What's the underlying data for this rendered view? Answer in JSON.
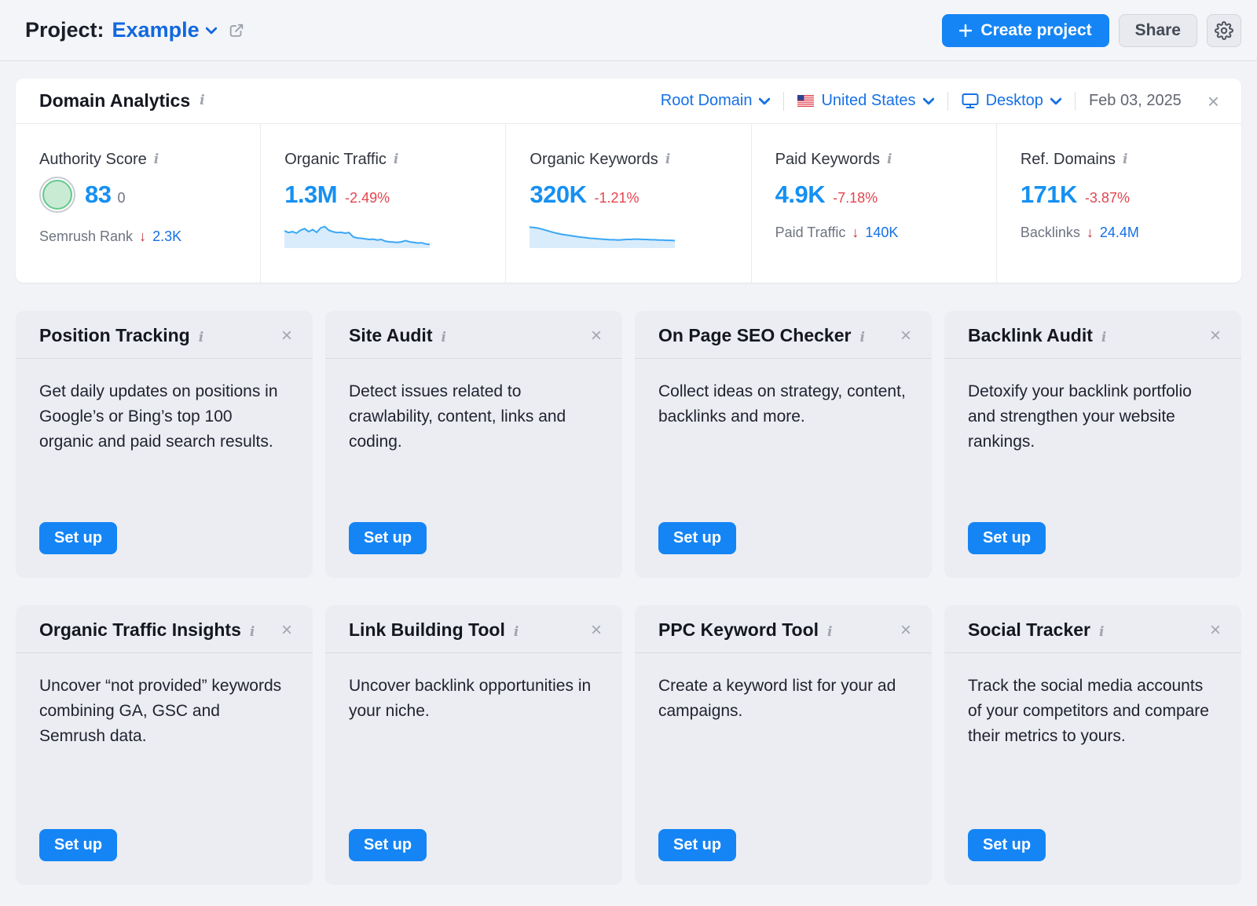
{
  "header": {
    "project_label": "Project:",
    "project_name": "Example",
    "create_project_label": "Create project",
    "share_label": "Share"
  },
  "panel": {
    "title": "Domain Analytics",
    "filters": {
      "scope": "Root Domain",
      "country": "United States",
      "device": "Desktop",
      "date": "Feb 03, 2025"
    },
    "metrics": [
      {
        "label": "Authority Score",
        "value": "83",
        "value_secondary": "0",
        "sub_label": "Semrush Rank",
        "sub_value": "2.3K"
      },
      {
        "label": "Organic Traffic",
        "value": "1.3M",
        "change": "-2.49%"
      },
      {
        "label": "Organic Keywords",
        "value": "320K",
        "change": "-1.21%"
      },
      {
        "label": "Paid Keywords",
        "value": "4.9K",
        "change": "-7.18%",
        "sub_label": "Paid Traffic",
        "sub_value": "140K"
      },
      {
        "label": "Ref. Domains",
        "value": "171K",
        "change": "-3.87%",
        "sub_label": "Backlinks",
        "sub_value": "24.4M"
      }
    ],
    "sparklines": {
      "organic_traffic": [
        0.58,
        0.52,
        0.55,
        0.5,
        0.6,
        0.65,
        0.55,
        0.62,
        0.53,
        0.68,
        0.72,
        0.6,
        0.55,
        0.52,
        0.53,
        0.5,
        0.52,
        0.38,
        0.34,
        0.33,
        0.31,
        0.29,
        0.3,
        0.27,
        0.29,
        0.23,
        0.21,
        0.2,
        0.19,
        0.21,
        0.25,
        0.21,
        0.19,
        0.17,
        0.18,
        0.14,
        0.12
      ],
      "organic_keywords": [
        0.7,
        0.69,
        0.67,
        0.64,
        0.6,
        0.56,
        0.52,
        0.49,
        0.46,
        0.44,
        0.42,
        0.4,
        0.38,
        0.36,
        0.35,
        0.33,
        0.32,
        0.31,
        0.3,
        0.29,
        0.28,
        0.28,
        0.27,
        0.28,
        0.29,
        0.29,
        0.3,
        0.3,
        0.29,
        0.29,
        0.28,
        0.28,
        0.27,
        0.27,
        0.26,
        0.26,
        0.25
      ]
    }
  },
  "cards": [
    {
      "title": "Position Tracking",
      "description": "Get daily updates on positions in Google’s or Bing’s top 100 organic and paid search results.",
      "button": "Set up"
    },
    {
      "title": "Site Audit",
      "description": "Detect issues related to crawlability, content, links and coding.",
      "button": "Set up"
    },
    {
      "title": "On Page SEO Checker",
      "description": "Collect ideas on strategy, content, backlinks and more.",
      "button": "Set up"
    },
    {
      "title": "Backlink Audit",
      "description": "Detoxify your backlink portfolio and strengthen your website rankings.",
      "button": "Set up"
    },
    {
      "title": "Organic Traffic Insights",
      "description": "Uncover “not provided” keywords combining GA, GSC and Semrush data.",
      "button": "Set up"
    },
    {
      "title": "Link Building Tool",
      "description": "Uncover backlink opportunities in your niche.",
      "button": "Set up"
    },
    {
      "title": "PPC Keyword Tool",
      "description": "Create a keyword list for your ad campaigns.",
      "button": "Set up"
    },
    {
      "title": "Social Tracker",
      "description": "Track the social media accounts of your competitors and compare their metrics to yours.",
      "button": "Set up"
    }
  ],
  "colors": {
    "accent_blue": "#1585F5",
    "link_blue": "#1570E5",
    "value_blue": "#1690F2",
    "negative_red": "#E3454F",
    "arrow_red": "#C32A39",
    "score_green_fill": "#C9EBD4",
    "score_green_border": "#62C98C",
    "sparkline_stroke": "#3AA7F4",
    "sparkline_fill": "#D9ECFC"
  }
}
